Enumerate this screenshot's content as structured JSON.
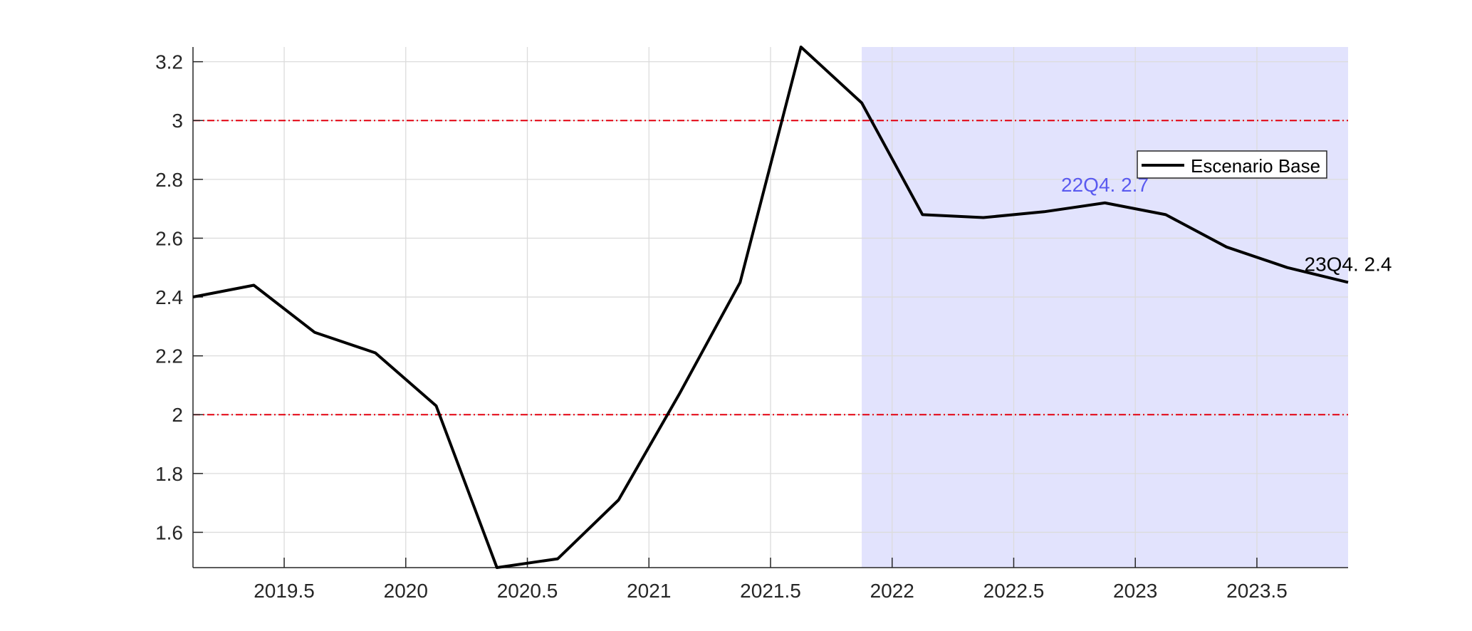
{
  "chart_data": {
    "type": "line",
    "title": "",
    "xlabel": "",
    "ylabel": "",
    "xlim": [
      2019.125,
      2023.875
    ],
    "ylim": [
      1.48,
      3.25
    ],
    "grid": true,
    "legend_position": "top-right",
    "xticks": [
      2019.5,
      2020,
      2020.5,
      2021,
      2021.5,
      2022,
      2022.5,
      2023,
      2023.5
    ],
    "xtick_labels": [
      "2019.5",
      "2020",
      "2020.5",
      "2021",
      "2021.5",
      "2022",
      "2022.5",
      "2023",
      "2023.5"
    ],
    "yticks": [
      1.6,
      1.8,
      2,
      2.2,
      2.4,
      2.6,
      2.8,
      3,
      3.2
    ],
    "ytick_labels": [
      "1.6",
      "1.8",
      "2",
      "2.2",
      "2.4",
      "2.6",
      "2.8",
      "3",
      "3.2"
    ],
    "forecast_region": {
      "x_start": 2021.875,
      "x_end": 2023.875,
      "color": "#e2e3fd"
    },
    "reference_lines": [
      {
        "y": 3,
        "color": "#e3000f",
        "style": "dash-dot"
      },
      {
        "y": 2,
        "color": "#e3000f",
        "style": "dash-dot"
      }
    ],
    "series": [
      {
        "name": "Escenario Base",
        "color": "#000000",
        "x": [
          2019.125,
          2019.375,
          2019.625,
          2019.875,
          2020.125,
          2020.375,
          2020.625,
          2020.875,
          2021.125,
          2021.375,
          2021.625,
          2021.875,
          2022.125,
          2022.375,
          2022.625,
          2022.875,
          2023.125,
          2023.375,
          2023.625,
          2023.875
        ],
        "values": [
          2.4,
          2.44,
          2.28,
          2.21,
          2.03,
          1.48,
          1.51,
          1.71,
          2.07,
          2.45,
          3.25,
          3.06,
          2.68,
          2.67,
          2.69,
          2.72,
          2.68,
          2.57,
          2.5,
          2.45
        ]
      }
    ],
    "annotations": [
      {
        "text": "22Q4. 2.7",
        "x": 2022.875,
        "y": 2.72,
        "color": "#5a5af0"
      },
      {
        "text": "23Q4. 2.4",
        "x": 2023.875,
        "y": 2.45,
        "color": "#000000"
      }
    ]
  }
}
